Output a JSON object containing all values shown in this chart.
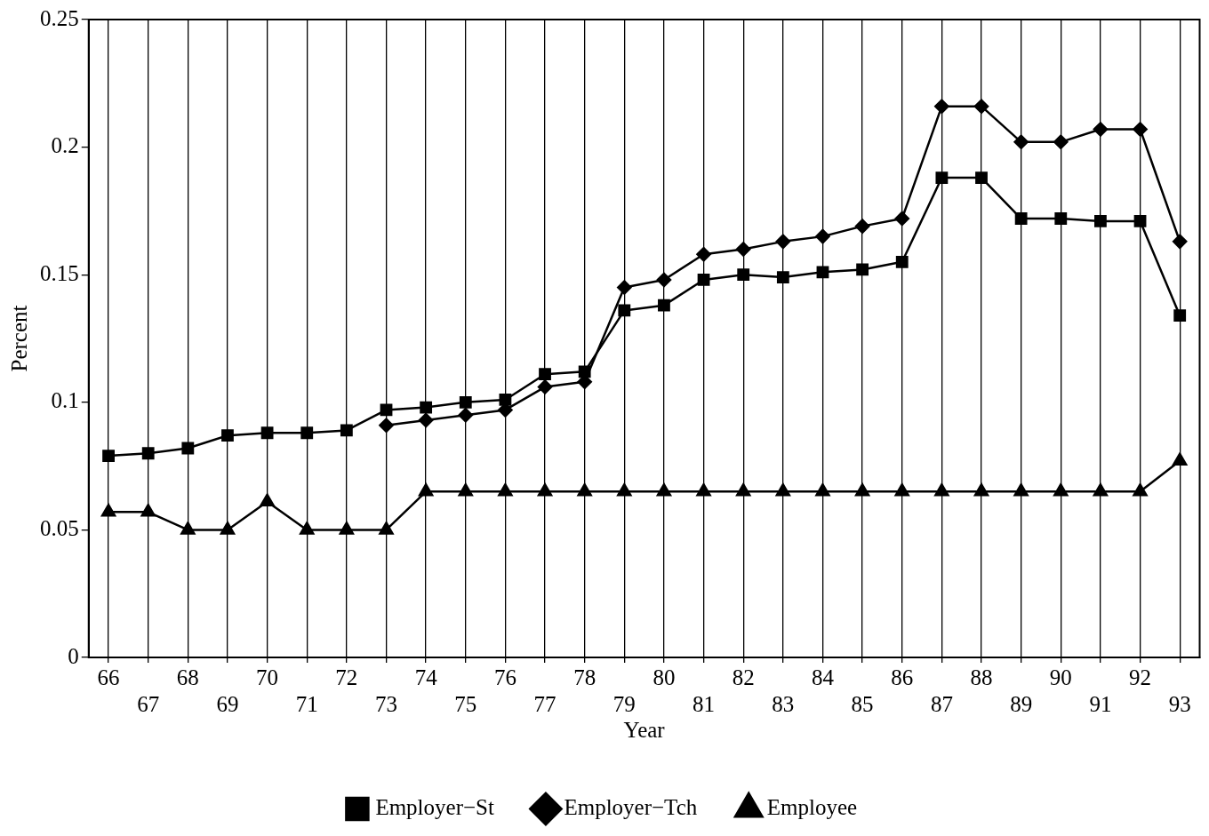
{
  "chart_data": {
    "type": "line",
    "xlabel": "Year",
    "ylabel": "Percent",
    "categories": [
      "66",
      "67",
      "68",
      "69",
      "70",
      "71",
      "72",
      "73",
      "74",
      "75",
      "76",
      "77",
      "78",
      "79",
      "80",
      "81",
      "82",
      "83",
      "84",
      "85",
      "86",
      "87",
      "88",
      "89",
      "90",
      "91",
      "92",
      "93"
    ],
    "ylim": [
      0,
      0.25
    ],
    "yticks": [
      0,
      0.05,
      0.1,
      0.15,
      0.2,
      0.25
    ],
    "grid": "x",
    "legend": "bottom",
    "series": [
      {
        "name": "Employer−St",
        "color": "#000000",
        "marker": "square",
        "values": [
          0.079,
          0.08,
          0.082,
          0.087,
          0.088,
          0.088,
          0.089,
          0.097,
          0.098,
          0.1,
          0.101,
          0.111,
          0.112,
          0.136,
          0.138,
          0.148,
          0.15,
          0.149,
          0.151,
          0.152,
          0.155,
          0.188,
          0.188,
          0.172,
          0.172,
          0.171,
          0.171,
          0.134
        ]
      },
      {
        "name": "Employer−Tch",
        "color": "#000000",
        "marker": "diamond",
        "values": [
          null,
          null,
          null,
          null,
          null,
          null,
          null,
          0.091,
          0.093,
          0.095,
          0.097,
          0.106,
          0.108,
          0.145,
          0.148,
          0.158,
          0.16,
          0.163,
          0.165,
          0.169,
          0.172,
          0.216,
          0.216,
          0.202,
          0.202,
          0.207,
          0.207,
          0.163
        ]
      },
      {
        "name": "Employee",
        "color": "#000000",
        "marker": "triangle",
        "values": [
          0.057,
          0.057,
          0.05,
          0.05,
          0.061,
          0.05,
          0.05,
          0.05,
          0.065,
          0.065,
          0.065,
          0.065,
          0.065,
          0.065,
          0.065,
          0.065,
          0.065,
          0.065,
          0.065,
          0.065,
          0.065,
          0.065,
          0.065,
          0.065,
          0.065,
          0.065,
          0.065,
          0.077
        ]
      }
    ]
  }
}
